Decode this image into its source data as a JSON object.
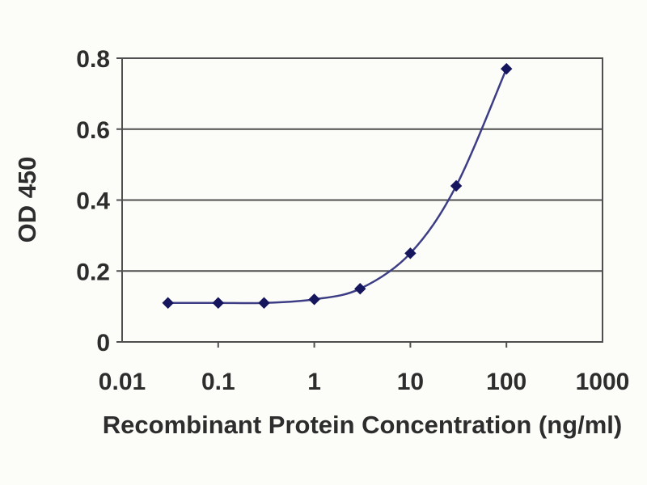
{
  "page": {
    "background": "#fcfcf9"
  },
  "chart_data": {
    "type": "line",
    "x": [
      0.03,
      0.1,
      0.3,
      1,
      3,
      10,
      30,
      100
    ],
    "y": [
      0.11,
      0.11,
      0.11,
      0.12,
      0.15,
      0.25,
      0.44,
      0.77
    ],
    "title": "",
    "xlabel": "Recombinant Protein Concentration (ng/ml)",
    "ylabel": "OD 450",
    "xscale": "log",
    "xlim": [
      0.01,
      1000
    ],
    "ylim": [
      0,
      0.8
    ],
    "x_tick_values": [
      0.01,
      0.1,
      1,
      10,
      100,
      1000
    ],
    "x_tick_labels": [
      "0.01",
      "0.1",
      "1",
      "10",
      "100",
      "1000"
    ],
    "y_tick_values": [
      0,
      0.2,
      0.4,
      0.6,
      0.8
    ],
    "y_tick_labels": [
      "0",
      "0.2",
      "0.4",
      "0.6",
      "0.8"
    ],
    "grid": "horizontal",
    "legend_position": "none",
    "marker_shape": "diamond",
    "colors": {
      "marker": "#16165e",
      "line": "#3d3d85",
      "grid": "#4f4f4f",
      "border": "#4f4f4f",
      "text": "#2d2d2d"
    }
  }
}
